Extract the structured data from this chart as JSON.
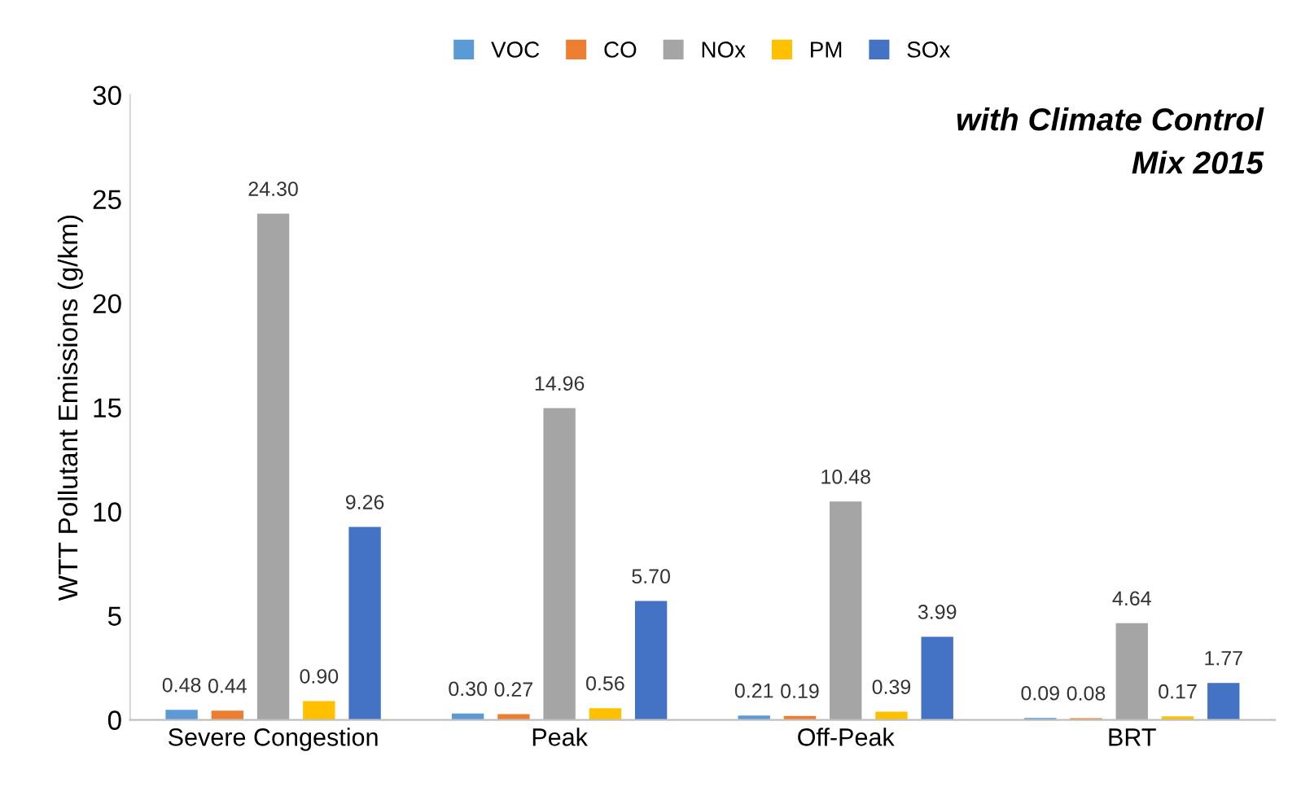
{
  "chart_data": {
    "type": "bar",
    "ylabel": "WTT Pollutant Emissions (g/km)",
    "categories": [
      "Severe Congestion",
      "Peak",
      "Off-Peak",
      "BRT"
    ],
    "series": [
      {
        "name": "VOC",
        "color": "#5b9bd5",
        "values": [
          0.48,
          0.3,
          0.21,
          0.09
        ],
        "value_labels": [
          "0.48",
          "0.30",
          "0.21",
          "0.09"
        ]
      },
      {
        "name": "CO",
        "color": "#ed7d31",
        "values": [
          0.44,
          0.27,
          0.19,
          0.08
        ],
        "value_labels": [
          "0.44",
          "0.27",
          "0.19",
          "0.08"
        ]
      },
      {
        "name": "NOx",
        "color": "#a5a5a5",
        "values": [
          24.3,
          14.96,
          10.48,
          4.64
        ],
        "value_labels": [
          "24.30",
          "14.96",
          "10.48",
          "4.64"
        ]
      },
      {
        "name": "PM",
        "color": "#ffc000",
        "values": [
          0.9,
          0.56,
          0.39,
          0.17
        ],
        "value_labels": [
          "0.90",
          "0.56",
          "0.39",
          "0.17"
        ]
      },
      {
        "name": "SOx",
        "color": "#4472c4",
        "values": [
          9.26,
          5.7,
          3.99,
          1.77
        ],
        "value_labels": [
          "9.26",
          "5.70",
          "3.99",
          "1.77"
        ]
      }
    ],
    "ylim": [
      0,
      30
    ],
    "yticks": [
      0,
      5,
      10,
      15,
      20,
      25,
      30
    ],
    "annotations": [
      "with Climate Control\nMix 2015"
    ],
    "grid": false,
    "legend": "top"
  }
}
